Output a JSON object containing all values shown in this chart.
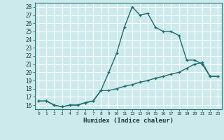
{
  "title": "",
  "xlabel": "Humidex (Indice chaleur)",
  "ylabel": "",
  "bg_color": "#cce9ec",
  "grid_color": "#ffffff",
  "line_color": "#1e6b6b",
  "xlim": [
    -0.5,
    23.5
  ],
  "ylim": [
    15.5,
    28.5
  ],
  "xticks": [
    0,
    1,
    2,
    3,
    4,
    5,
    6,
    7,
    8,
    9,
    10,
    11,
    12,
    13,
    14,
    15,
    16,
    17,
    18,
    19,
    20,
    21,
    22,
    23
  ],
  "yticks": [
    16,
    17,
    18,
    19,
    20,
    21,
    22,
    23,
    24,
    25,
    26,
    27,
    28
  ],
  "series1_x": [
    0,
    1,
    2,
    3,
    4,
    5,
    6,
    7,
    8,
    9,
    10,
    11,
    12,
    13,
    14,
    15,
    16,
    17,
    18,
    19,
    20,
    21,
    22,
    23
  ],
  "series1_y": [
    16.5,
    16.5,
    16.0,
    15.8,
    16.0,
    16.0,
    16.3,
    16.5,
    17.8,
    20.0,
    22.3,
    25.5,
    28.0,
    27.0,
    27.2,
    25.5,
    25.0,
    25.0,
    24.5,
    21.5,
    21.5,
    21.0,
    19.5,
    19.5
  ],
  "series2_x": [
    0,
    1,
    2,
    3,
    4,
    5,
    6,
    7,
    8,
    9,
    10,
    11,
    12,
    13,
    14,
    15,
    16,
    17,
    18,
    19,
    20,
    21,
    22,
    23
  ],
  "series2_y": [
    16.5,
    16.5,
    16.0,
    15.8,
    16.0,
    16.0,
    16.3,
    16.5,
    17.8,
    17.8,
    18.0,
    18.3,
    18.5,
    18.8,
    19.0,
    19.3,
    19.5,
    19.8,
    20.0,
    20.5,
    21.0,
    21.2,
    19.5,
    19.5
  ]
}
